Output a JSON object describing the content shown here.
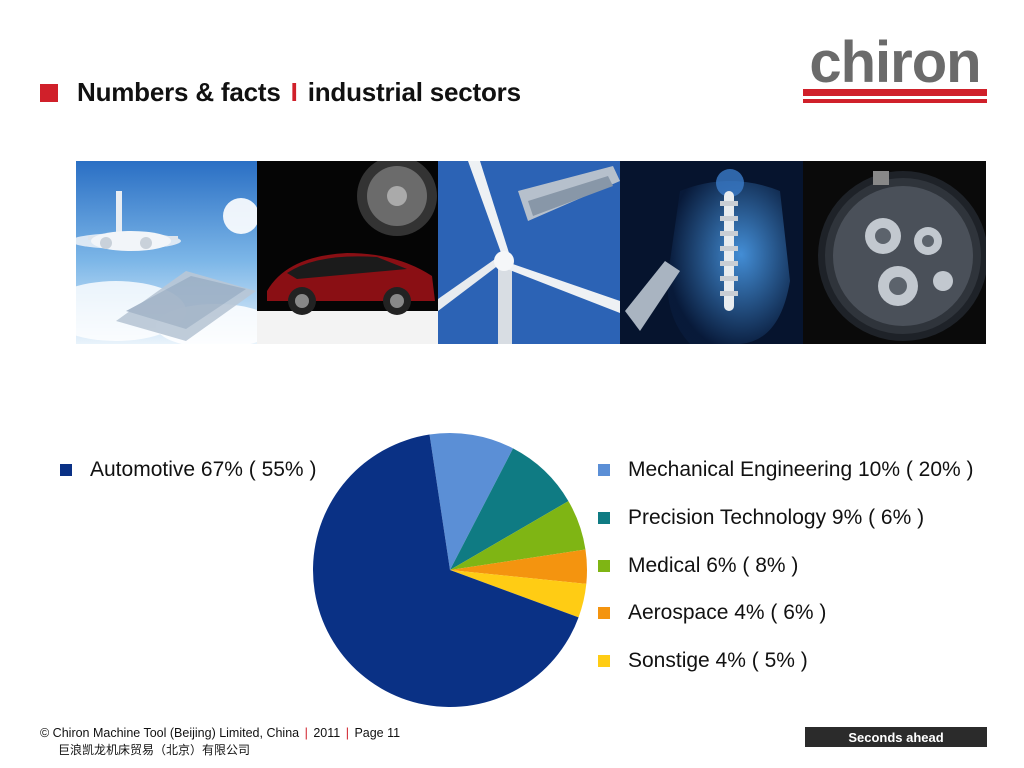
{
  "header": {
    "title_part1": "Numbers & facts",
    "title_separator": "I",
    "title_part2": "industrial sectors",
    "accent_color": "#d0202a"
  },
  "logo": {
    "text": "chiron",
    "icon": "chiron-logo"
  },
  "photos": [
    {
      "name": "aircraft-photo",
      "subject": "airplane"
    },
    {
      "name": "sports-car-photo",
      "subject": "red-sports-car"
    },
    {
      "name": "wind-turbine-photo",
      "subject": "wind-turbine"
    },
    {
      "name": "spine-medical-photo",
      "subject": "human-spine"
    },
    {
      "name": "watch-movement-photo",
      "subject": "watch-movement"
    }
  ],
  "chart_data": {
    "type": "pie",
    "series": [
      {
        "name": "Automotive",
        "value": 67,
        "label": "Automotive 67% ( 55% )",
        "color": "#0a3185"
      },
      {
        "name": "Mechanical Engineering",
        "value": 10,
        "label": "Mechanical Engineering 10% ( 20% )",
        "color": "#5b8fd6"
      },
      {
        "name": "Precision Technology",
        "value": 9,
        "label": "Precision Technology 9% ( 6% )",
        "color": "#0f7b83"
      },
      {
        "name": "Medical",
        "value": 6,
        "label": "Medical 6% ( 8% )",
        "color": "#7fb514"
      },
      {
        "name": "Aerospace",
        "value": 4,
        "label": "Aerospace 4% ( 6% )",
        "color": "#f4940f"
      },
      {
        "name": "Sonstige",
        "value": 4,
        "label": "Sonstige  4% ( 5% )",
        "color": "#ffcc14"
      }
    ]
  },
  "footer": {
    "copyright": "© Chiron Machine Tool (Beijing) Limited, China",
    "sep": "|",
    "year": "2011",
    "page": "Page 11",
    "chinese_name": "巨浪凯龙机床贸易（北京）有限公司",
    "tagline": "Seconds ahead"
  }
}
